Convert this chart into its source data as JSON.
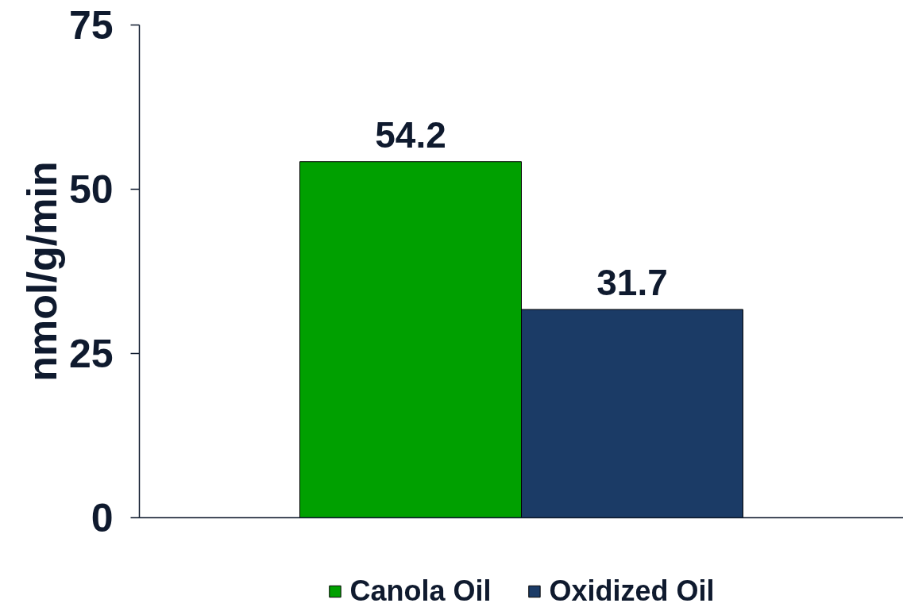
{
  "chart_data": {
    "type": "bar",
    "ylabel": "nmol/g/min",
    "categories": [
      null
    ],
    "series": [
      {
        "name": "Canola Oil",
        "color": "#00a000",
        "values": [
          54.2
        ]
      },
      {
        "name": "Oxidized Oil",
        "color": "#1b3b66",
        "values": [
          31.7
        ]
      }
    ],
    "ylim": [
      0,
      75
    ],
    "yticks": [
      0,
      25,
      50,
      75
    ],
    "legend": "bottom",
    "data_labels": true
  }
}
